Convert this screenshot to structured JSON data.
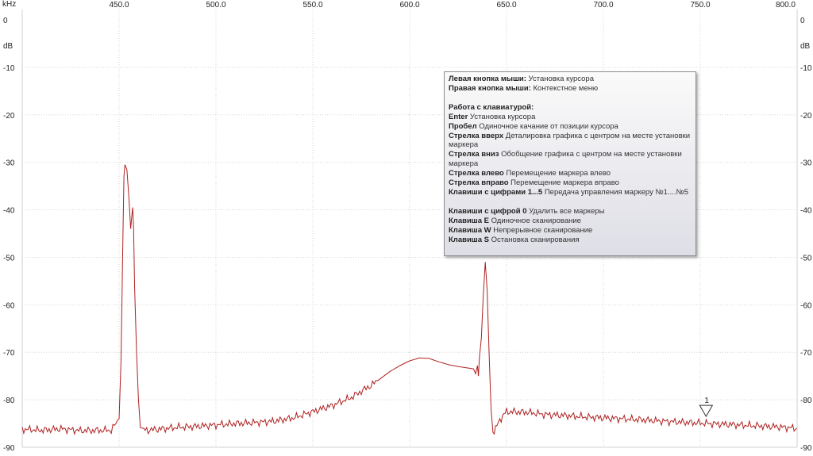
{
  "axis": {
    "x_unit": "kHz",
    "y_unit_left": "dB",
    "y_unit_right": "dB",
    "left_zero": "0",
    "right_zero": "0"
  },
  "chart_data": {
    "type": "line",
    "title": "",
    "xlabel": "kHz",
    "ylabel": "dB",
    "xlim": [
      400,
      800
    ],
    "ylim": [
      -90,
      0
    ],
    "x_ticks": [
      "450.0",
      "500.0",
      "550.0",
      "600.0",
      "650.0",
      "700.0",
      "750.0",
      "800.0"
    ],
    "y_ticks": [
      "0",
      "-10",
      "-20",
      "-30",
      "-40",
      "-50",
      "-60",
      "-70",
      "-80",
      "-90"
    ],
    "grid": true,
    "color": "#b02020",
    "series": [
      {
        "x": [
          400,
          410,
          420,
          430,
          446,
          450,
          451,
          452,
          452.5,
          453,
          454,
          455,
          456,
          456.5,
          457,
          457.5,
          458,
          459,
          460,
          461,
          462,
          465,
          470,
          480,
          490,
          500,
          510,
          520,
          530,
          540,
          550,
          560,
          570,
          575,
          580,
          585,
          590,
          595,
          600,
          605,
          610,
          615,
          620,
          625,
          630,
          633,
          634,
          635,
          635.5,
          636,
          637,
          638,
          639,
          640,
          641,
          642,
          643,
          645,
          648,
          650,
          660,
          670,
          680,
          690,
          700,
          710,
          720,
          730,
          740,
          750,
          760,
          770,
          780,
          790,
          800
        ],
        "y": [
          -86.2,
          -86.4,
          -86.1,
          -86.5,
          -86.4,
          -84,
          -72,
          -45,
          -33,
          -30.5,
          -31.5,
          -37,
          -44,
          -41.5,
          -39.5,
          -44,
          -56,
          -70,
          -80,
          -85,
          -86.3,
          -86.4,
          -86.2,
          -85.8,
          -85.6,
          -85.3,
          -85,
          -84.8,
          -84.5,
          -83.8,
          -82.5,
          -81.2,
          -79.5,
          -78.2,
          -77,
          -75.5,
          -74,
          -72.8,
          -71.8,
          -71.2,
          -71.3,
          -72,
          -72.6,
          -73,
          -73.3,
          -73.5,
          -74.5,
          -72.8,
          -75,
          -71.2,
          -67,
          -58,
          -51,
          -57,
          -70,
          -82,
          -86.8,
          -85.5,
          -83.3,
          -82.5,
          -82.6,
          -83.1,
          -83.3,
          -83.6,
          -83.8,
          -84,
          -84.2,
          -84.5,
          -84.7,
          -84.9,
          -85.1,
          -85.3,
          -85.5,
          -85.7,
          -86
        ]
      }
    ],
    "annotations": [
      {
        "label": "1",
        "x": 753,
        "y": -82.5,
        "kind": "marker"
      }
    ]
  },
  "tooltip": {
    "lines": [
      {
        "bold": "Левая кнопка мыши:",
        "text": " Установка курсора"
      },
      {
        "bold": "Правая кнопка мыши:",
        "text": " Контекстное меню"
      },
      {
        "gap": true
      },
      {
        "bold": "Работа с клавиатурой:",
        "text": ""
      },
      {
        "bold": "Enter",
        "text": " Установка курсора"
      },
      {
        "bold": "Пробел",
        "text": " Одиночное качание от позиции курсора"
      },
      {
        "bold": "Стрелка вверх",
        "text": " Деталировка графика с центром на месте установки маркера"
      },
      {
        "bold": "Стрелка вниз",
        "text": " Обобщение графика с центром на месте установки маркера"
      },
      {
        "bold": "Стрелка влево",
        "text": " Перемещение маркера влево"
      },
      {
        "bold": "Стрелка вправо",
        "text": " Перемещение маркера вправо"
      },
      {
        "bold": "Клавиши с цифрами 1...5",
        "text": " Передача управления маркеру №1....№5"
      },
      {
        "gap": true
      },
      {
        "bold": "Клавиши с цифрой 0",
        "text": " Удалить все маркеры"
      },
      {
        "bold": "Клавиша E",
        "text": " Одиночное сканирование"
      },
      {
        "bold": "Клавиша W",
        "text": " Непрерывное сканирование"
      },
      {
        "bold": "Клавиша S",
        "text": " Остановка сканирования"
      }
    ]
  }
}
